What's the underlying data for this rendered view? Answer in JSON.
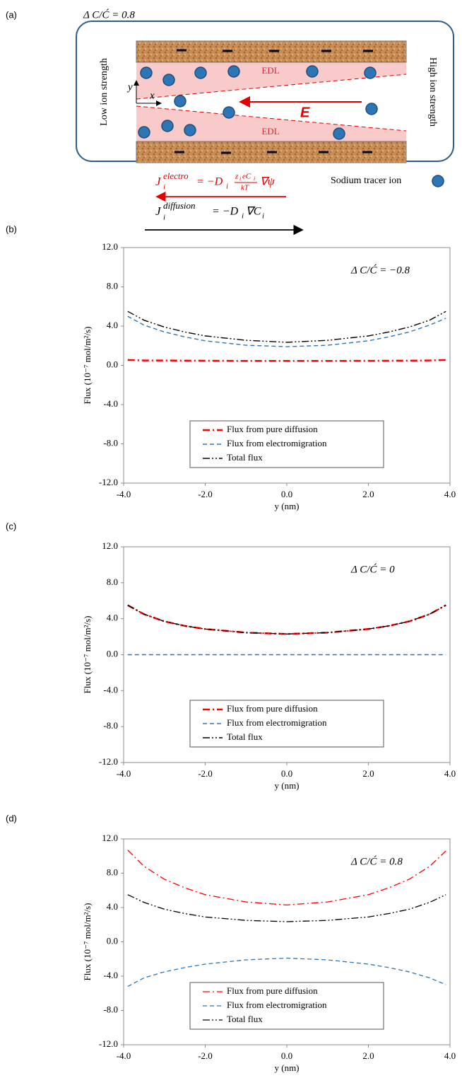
{
  "panel_a": {
    "label": "(a)",
    "ratio": "Δ C/Ć = 0.8",
    "edl_top": "EDL",
    "edl_bottom": "EDL",
    "low": "Low ion strength",
    "high": "High ion strength",
    "field": "E",
    "x_axis": "x",
    "y_axis": "y",
    "tracer": "Sodium tracer ion",
    "eq1": {
      "j": "J",
      "sub": "i",
      "sup": "electro",
      "eq": "= −D",
      "dsub": "i",
      "num_z": "z",
      "num_zsub": "i",
      "num_c": "eC",
      "num_csub": "i",
      "den": "kT",
      "tail": "∇ψ"
    },
    "eq2": {
      "j": "J",
      "sub": "i",
      "sup": "diffusion",
      "eq": "= −D",
      "dsub": "i",
      "tail": "∇C",
      "tsub": "i"
    }
  },
  "chart_data": [
    {
      "type": "line",
      "panel": "(b)",
      "annotation": "Δ C/Ć = −0.8",
      "xlabel": "y (nm)",
      "ylabel": "Flux (10⁻⁷ mol/m²/s)",
      "legend": "lower center",
      "x": [
        -3.9,
        -3.5,
        -3,
        -2.5,
        -2,
        -1,
        0,
        1,
        2,
        2.5,
        3,
        3.5,
        3.9
      ],
      "series": [
        {
          "name": "Flux from pure diffusion",
          "color": "#ff0000",
          "dash": "dashdot",
          "width": 2.5,
          "values": [
            0.55,
            0.5,
            0.5,
            0.48,
            0.47,
            0.45,
            0.45,
            0.45,
            0.46,
            0.47,
            0.48,
            0.5,
            0.55
          ]
        },
        {
          "name": "Flux from electromigration",
          "color": "#2e75b6",
          "dash": "dashed",
          "width": 1.4,
          "values": [
            5.0,
            4.1,
            3.4,
            2.9,
            2.5,
            2.05,
            1.9,
            2.05,
            2.5,
            2.9,
            3.4,
            4.1,
            4.8
          ]
        },
        {
          "name": "Total flux",
          "color": "#000000",
          "dash": "dashdotdot",
          "width": 1.4,
          "values": [
            5.5,
            4.6,
            3.9,
            3.4,
            3.0,
            2.55,
            2.35,
            2.55,
            3.0,
            3.4,
            3.9,
            4.6,
            5.5
          ]
        }
      ],
      "xlim": [
        -4,
        4
      ],
      "xticks": [
        {
          "value": -4,
          "label": "-4.0"
        },
        {
          "value": -2,
          "label": "-2.0"
        },
        {
          "value": 0,
          "label": "0.0"
        },
        {
          "value": 2,
          "label": "2.0"
        },
        {
          "value": 4,
          "label": "4.0"
        }
      ],
      "ylim": [
        -12,
        12
      ],
      "yticks": [
        {
          "value": -12,
          "label": "-12.0"
        },
        {
          "value": -8,
          "label": "-8.0"
        },
        {
          "value": -4,
          "label": "-4.0"
        },
        {
          "value": 0,
          "label": "0.0"
        },
        {
          "value": 4,
          "label": "4.0"
        },
        {
          "value": 8,
          "label": "8.0"
        },
        {
          "value": 12,
          "label": "12.0"
        }
      ]
    },
    {
      "type": "line",
      "panel": "(c)",
      "annotation": "Δ C/Ć = 0",
      "xlabel": "y (nm)",
      "ylabel": "Flux (10⁻⁷ mol/m²/s)",
      "legend": "lower center",
      "x": [
        -3.9,
        -3.5,
        -3,
        -2.5,
        -2,
        -1,
        0,
        1,
        2,
        2.5,
        3,
        3.5,
        3.9
      ],
      "series": [
        {
          "name": "Flux from pure diffusion",
          "color": "#ff0000",
          "dash": "dashdot",
          "width": 2.5,
          "values": [
            5.5,
            4.5,
            3.7,
            3.2,
            2.85,
            2.45,
            2.3,
            2.45,
            2.85,
            3.2,
            3.7,
            4.5,
            5.5
          ]
        },
        {
          "name": "Flux from electromigration",
          "color": "#2e75b6",
          "dash": "dashed",
          "width": 1.4,
          "values": [
            0,
            0,
            0,
            0,
            0,
            0,
            0,
            0,
            0,
            0,
            0,
            0,
            0
          ]
        },
        {
          "name": "Total flux",
          "color": "#000000",
          "dash": "dashdotdot",
          "width": 1.4,
          "values": [
            5.5,
            4.5,
            3.7,
            3.2,
            2.85,
            2.45,
            2.3,
            2.45,
            2.85,
            3.2,
            3.7,
            4.5,
            5.5
          ]
        }
      ],
      "xlim": [
        -4,
        4
      ],
      "xticks": [
        {
          "value": -4,
          "label": "-4.0"
        },
        {
          "value": -2,
          "label": "-2.0"
        },
        {
          "value": 0,
          "label": "0.0"
        },
        {
          "value": 2,
          "label": "2.0"
        },
        {
          "value": 4,
          "label": "4.0"
        }
      ],
      "ylim": [
        -12,
        12
      ],
      "yticks": [
        {
          "value": -12,
          "label": "-12.0"
        },
        {
          "value": -8,
          "label": "-8.0"
        },
        {
          "value": -4,
          "label": "-4.0"
        },
        {
          "value": 0,
          "label": "0.0"
        },
        {
          "value": 4,
          "label": "4.0"
        },
        {
          "value": 8,
          "label": "8.0"
        },
        {
          "value": 12,
          "label": "12.0"
        }
      ]
    },
    {
      "type": "line",
      "panel": "(d)",
      "annotation": "Δ C/Ć = 0.8",
      "xlabel": "y (nm)",
      "ylabel": "Flux (10⁻⁷ mol/m²/s)",
      "legend": "lower center",
      "x": [
        -3.9,
        -3.5,
        -3,
        -2.5,
        -2,
        -1,
        0,
        1,
        2,
        2.5,
        3,
        3.5,
        3.9
      ],
      "series": [
        {
          "name": "Flux from pure diffusion",
          "color": "#ff0000",
          "dash": "dashdot",
          "width": 1.3,
          "values": [
            10.7,
            8.8,
            7.3,
            6.3,
            5.5,
            4.65,
            4.3,
            4.65,
            5.5,
            6.3,
            7.3,
            8.8,
            10.6
          ]
        },
        {
          "name": "Flux from electromigration",
          "color": "#2e75b6",
          "dash": "dashed",
          "width": 1.3,
          "values": [
            -5.2,
            -4.2,
            -3.5,
            -3.0,
            -2.6,
            -2.1,
            -1.9,
            -2.1,
            -2.6,
            -3.0,
            -3.5,
            -4.2,
            -5.0
          ]
        },
        {
          "name": "Total flux",
          "color": "#000000",
          "dash": "dashdotdot",
          "width": 1.3,
          "values": [
            5.5,
            4.6,
            3.8,
            3.3,
            2.9,
            2.5,
            2.35,
            2.5,
            2.9,
            3.3,
            3.8,
            4.6,
            5.5
          ]
        }
      ],
      "xlim": [
        -4,
        4
      ],
      "xticks": [
        {
          "value": -4,
          "label": "-4.0"
        },
        {
          "value": -2,
          "label": "-2.0"
        },
        {
          "value": 0,
          "label": "0.0"
        },
        {
          "value": 2,
          "label": "2.0"
        },
        {
          "value": 4,
          "label": "4.0"
        }
      ],
      "ylim": [
        -12,
        12
      ],
      "yticks": [
        {
          "value": -12,
          "label": "-12.0"
        },
        {
          "value": -8,
          "label": "-8.0"
        },
        {
          "value": -4,
          "label": "-4.0"
        },
        {
          "value": 0,
          "label": "0.0"
        },
        {
          "value": 4,
          "label": "4.0"
        },
        {
          "value": 8,
          "label": "8.0"
        },
        {
          "value": 12,
          "label": "12.0"
        }
      ]
    }
  ]
}
